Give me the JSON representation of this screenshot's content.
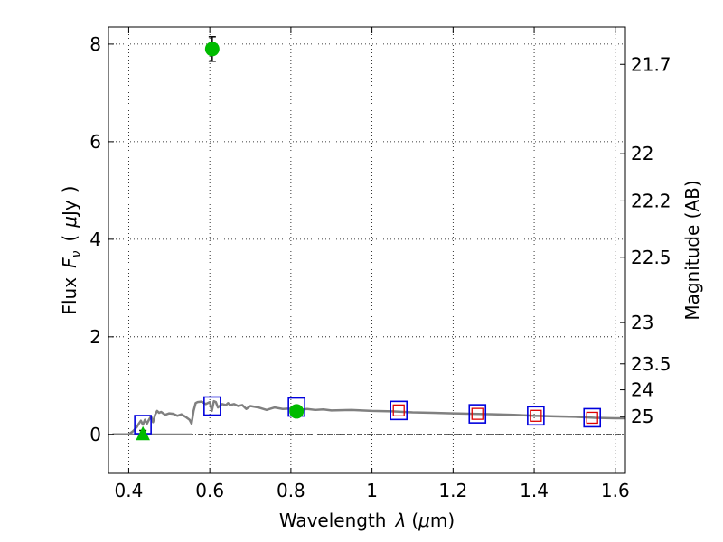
{
  "chart_data": {
    "type": "scatter",
    "xlabel": "Wavelength",
    "xlabel_symbol": "λ",
    "xlabel_unit_open": "(",
    "xlabel_unit_mu": "μ",
    "xlabel_unit_rest": "m)",
    "ylabel": "Flux",
    "ylabel_symbol": "F",
    "ylabel_subscript": "ν",
    "ylabel_paren_open": "(",
    "ylabel_unit_mu": "μ",
    "ylabel_unit_rest": "Jy",
    "ylabel_paren_close": ")",
    "y2label": "Magnitude (AB)",
    "xlim": [
      0.35,
      1.625
    ],
    "ylim": [
      -0.8,
      8.35
    ],
    "x_ticks": [
      0.4,
      0.6,
      0.8,
      1.0,
      1.2,
      1.4,
      1.6
    ],
    "x_tick_labels": [
      "0.4",
      "0.6",
      "0.8",
      "1",
      "1.2",
      "1.4",
      "1.6"
    ],
    "y_ticks": [
      0,
      2,
      4,
      6,
      8
    ],
    "y_tick_labels": [
      "0",
      "2",
      "4",
      "6",
      "8"
    ],
    "mag_ticks": [
      21.7,
      22,
      22.2,
      22.5,
      23,
      23.5,
      24,
      25
    ],
    "mag_tick_labels": [
      "21.7",
      "22",
      "22.2",
      "22.5",
      "23",
      "23.5",
      "24",
      "25"
    ],
    "grid": true,
    "colors": {
      "sed_line": "#808080",
      "observed": "#00bb00",
      "model_box": "#0000dd",
      "upper_box": "#dd0000"
    },
    "sed_model": {
      "x": [
        0.36,
        0.4,
        0.41,
        0.42,
        0.425,
        0.43,
        0.435,
        0.44,
        0.445,
        0.45,
        0.455,
        0.46,
        0.465,
        0.47,
        0.475,
        0.48,
        0.49,
        0.5,
        0.51,
        0.52,
        0.53,
        0.54,
        0.55,
        0.555,
        0.56,
        0.565,
        0.57,
        0.58,
        0.59,
        0.6,
        0.605,
        0.61,
        0.615,
        0.62,
        0.63,
        0.64,
        0.645,
        0.65,
        0.66,
        0.67,
        0.68,
        0.69,
        0.7,
        0.72,
        0.74,
        0.76,
        0.78,
        0.8,
        0.82,
        0.84,
        0.86,
        0.88,
        0.9,
        0.95,
        1.0,
        1.05,
        1.1,
        1.15,
        1.2,
        1.25,
        1.3,
        1.35,
        1.4,
        1.45,
        1.5,
        1.55,
        1.6,
        1.625
      ],
      "y": [
        0.0,
        0.0,
        0.06,
        0.15,
        0.22,
        0.28,
        0.2,
        0.3,
        0.22,
        0.3,
        0.37,
        0.25,
        0.4,
        0.48,
        0.44,
        0.46,
        0.4,
        0.43,
        0.42,
        0.38,
        0.41,
        0.36,
        0.3,
        0.22,
        0.48,
        0.64,
        0.66,
        0.67,
        0.62,
        0.66,
        0.48,
        0.68,
        0.66,
        0.55,
        0.62,
        0.6,
        0.64,
        0.6,
        0.62,
        0.58,
        0.6,
        0.52,
        0.58,
        0.55,
        0.5,
        0.55,
        0.52,
        0.53,
        0.5,
        0.52,
        0.5,
        0.51,
        0.49,
        0.5,
        0.48,
        0.47,
        0.45,
        0.44,
        0.43,
        0.42,
        0.41,
        0.4,
        0.38,
        0.37,
        0.36,
        0.34,
        0.33,
        0.33
      ]
    },
    "sed_baseline": {
      "x": [
        0.36,
        0.555
      ],
      "y": [
        0.0,
        0.0
      ]
    },
    "model_photometry": [
      {
        "x": 0.435,
        "y": 0.2
      },
      {
        "x": 0.606,
        "y": 0.58
      },
      {
        "x": 0.814,
        "y": 0.56
      },
      {
        "x": 1.066,
        "y": 0.49
      },
      {
        "x": 1.26,
        "y": 0.42
      },
      {
        "x": 1.404,
        "y": 0.38
      },
      {
        "x": 1.543,
        "y": 0.34
      }
    ],
    "upper_limits": [
      {
        "x": 1.066,
        "y": 0.49
      },
      {
        "x": 1.26,
        "y": 0.42
      },
      {
        "x": 1.404,
        "y": 0.38
      },
      {
        "x": 1.543,
        "y": 0.34
      }
    ],
    "observed": [
      {
        "x": 0.606,
        "y": 7.9,
        "err": 0.25,
        "marker": "circle"
      },
      {
        "x": 0.814,
        "y": 0.47,
        "err": 0.1,
        "marker": "circle"
      },
      {
        "x": 0.435,
        "y": 0.0,
        "err": 0.08,
        "marker": "triangle"
      }
    ]
  }
}
